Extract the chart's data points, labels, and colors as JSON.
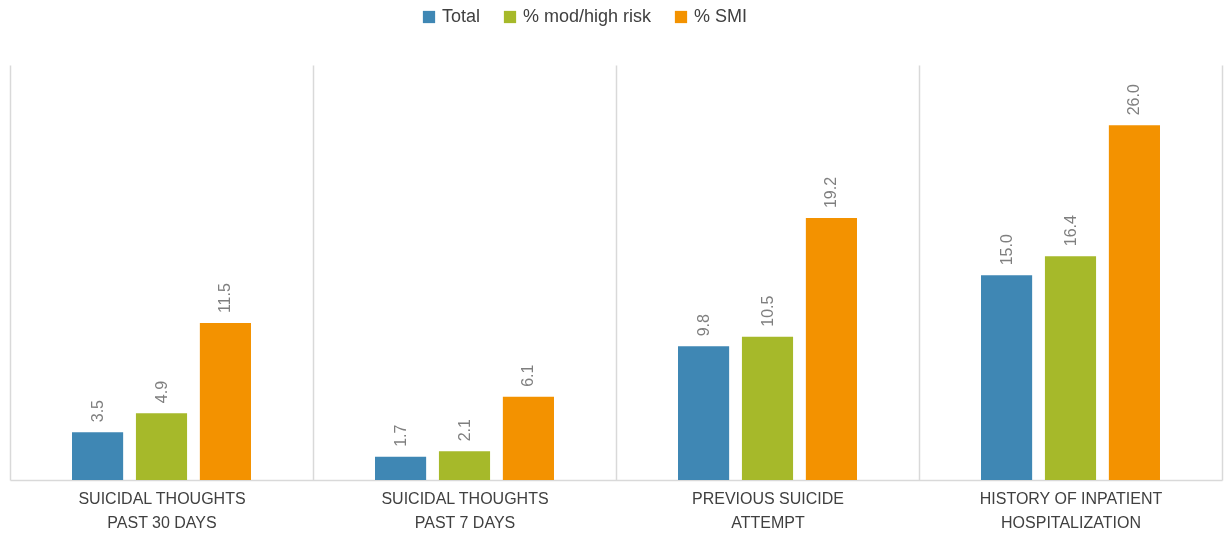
{
  "chart_data": {
    "type": "bar",
    "categories": [
      "SUICIDAL THOUGHTS PAST 30 DAYS",
      "SUICIDAL THOUGHTS PAST 7 DAYS",
      "PREVIOUS SUICIDE ATTEMPT",
      "HISTORY OF INPATIENT HOSPITALIZATION"
    ],
    "series": [
      {
        "name": "Total",
        "color": "#3f87b4",
        "values": [
          3.5,
          1.7,
          9.8,
          15.0
        ],
        "value_labels": [
          "3.5",
          "1.7",
          "9.8",
          "15.0"
        ]
      },
      {
        "name": "% mod/high risk",
        "color": "#a6b92a",
        "values": [
          4.9,
          2.1,
          10.5,
          16.4
        ],
        "value_labels": [
          "4.9",
          "2.1",
          "10.5",
          "16.4"
        ]
      },
      {
        "name": "% SMI",
        "color": "#f39200",
        "values": [
          11.5,
          6.1,
          19.2,
          26.0
        ],
        "value_labels": [
          "11.5",
          "6.1",
          "19.2",
          "26.0"
        ]
      }
    ],
    "grid": "x",
    "legend": "top"
  }
}
